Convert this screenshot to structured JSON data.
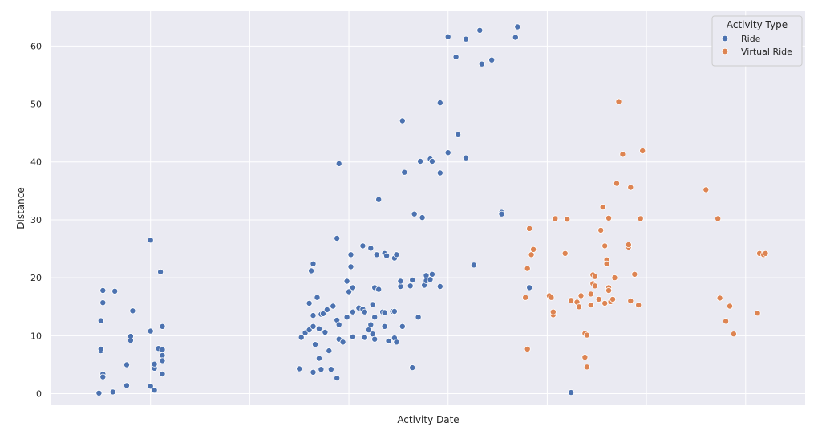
{
  "chart_data": {
    "type": "scatter",
    "title": "",
    "xlabel": "Activity Date",
    "ylabel": "Distance",
    "x_tick_labels_shown": false,
    "ylim": [
      -2,
      66
    ],
    "yticks": [
      0,
      10,
      20,
      30,
      40,
      50,
      60
    ],
    "grid": true,
    "legend": {
      "title": "Activity Type",
      "placement": "top-right"
    },
    "series": [
      {
        "name": "Ride",
        "color": "#4c72b0",
        "points": [
          [
            2.4,
            0.1
          ],
          [
            3.1,
            0.3
          ],
          [
            2.6,
            3.4
          ],
          [
            2.6,
            2.9
          ],
          [
            2.5,
            7.4
          ],
          [
            2.5,
            7.7
          ],
          [
            2.5,
            12.6
          ],
          [
            2.6,
            15.7
          ],
          [
            2.6,
            17.8
          ],
          [
            3.2,
            17.7
          ],
          [
            3.8,
            1.4
          ],
          [
            3.8,
            5.0
          ],
          [
            4.0,
            9.2
          ],
          [
            4.0,
            9.9
          ],
          [
            4.1,
            14.3
          ],
          [
            5.0,
            1.3
          ],
          [
            5.2,
            0.6
          ],
          [
            5.0,
            10.8
          ],
          [
            5.2,
            4.4
          ],
          [
            5.2,
            5.1
          ],
          [
            5.4,
            7.8
          ],
          [
            5.6,
            7.6
          ],
          [
            5.6,
            6.6
          ],
          [
            5.6,
            5.7
          ],
          [
            5.6,
            3.4
          ],
          [
            5.6,
            11.6
          ],
          [
            5.5,
            21.0
          ],
          [
            5.0,
            26.5
          ],
          [
            12.5,
            4.3
          ],
          [
            12.6,
            9.7
          ],
          [
            12.8,
            10.5
          ],
          [
            13.0,
            11.0
          ],
          [
            13.2,
            11.6
          ],
          [
            13.0,
            15.6
          ],
          [
            13.1,
            21.2
          ],
          [
            13.2,
            22.4
          ],
          [
            13.2,
            13.5
          ],
          [
            13.3,
            8.5
          ],
          [
            13.4,
            16.6
          ],
          [
            13.5,
            11.2
          ],
          [
            13.6,
            13.7
          ],
          [
            13.7,
            13.8
          ],
          [
            13.5,
            6.1
          ],
          [
            13.6,
            4.2
          ],
          [
            13.2,
            3.7
          ],
          [
            13.8,
            10.6
          ],
          [
            13.9,
            14.5
          ],
          [
            14.0,
            7.4
          ],
          [
            14.1,
            4.2
          ],
          [
            14.2,
            15.1
          ],
          [
            14.4,
            12.7
          ],
          [
            14.5,
            9.4
          ],
          [
            14.5,
            11.9
          ],
          [
            14.4,
            2.7
          ],
          [
            14.4,
            26.8
          ],
          [
            14.5,
            39.7
          ],
          [
            14.7,
            8.9
          ],
          [
            14.9,
            13.2
          ],
          [
            15.0,
            17.6
          ],
          [
            14.9,
            19.4
          ],
          [
            15.1,
            24.0
          ],
          [
            15.1,
            21.9
          ],
          [
            15.2,
            18.3
          ],
          [
            15.2,
            14.1
          ],
          [
            15.2,
            9.8
          ],
          [
            15.5,
            14.8
          ],
          [
            15.7,
            14.6
          ],
          [
            15.8,
            14.1
          ],
          [
            15.8,
            9.7
          ],
          [
            15.7,
            25.5
          ],
          [
            16.0,
            11.0
          ],
          [
            16.1,
            11.9
          ],
          [
            16.2,
            15.4
          ],
          [
            16.2,
            10.3
          ],
          [
            16.3,
            9.4
          ],
          [
            16.1,
            25.1
          ],
          [
            16.3,
            18.3
          ],
          [
            16.4,
            24.0
          ],
          [
            16.3,
            13.2
          ],
          [
            16.5,
            18.0
          ],
          [
            16.5,
            33.5
          ],
          [
            16.7,
            14.1
          ],
          [
            16.8,
            14.0
          ],
          [
            16.8,
            24.2
          ],
          [
            16.9,
            23.8
          ],
          [
            16.8,
            11.6
          ],
          [
            17.0,
            9.1
          ],
          [
            17.2,
            14.2
          ],
          [
            17.3,
            23.4
          ],
          [
            17.4,
            24.0
          ],
          [
            17.3,
            9.6
          ],
          [
            17.3,
            14.2
          ],
          [
            17.4,
            8.9
          ],
          [
            17.6,
            18.5
          ],
          [
            17.6,
            19.4
          ],
          [
            17.7,
            47.1
          ],
          [
            17.7,
            11.6
          ],
          [
            17.8,
            38.2
          ],
          [
            18.1,
            18.6
          ],
          [
            18.2,
            19.6
          ],
          [
            18.2,
            4.5
          ],
          [
            18.3,
            31.0
          ],
          [
            18.7,
            30.4
          ],
          [
            18.5,
            13.2
          ],
          [
            18.6,
            40.1
          ],
          [
            18.8,
            18.7
          ],
          [
            18.9,
            20.4
          ],
          [
            18.9,
            19.5
          ],
          [
            19.1,
            40.5
          ],
          [
            19.2,
            40.1
          ],
          [
            19.2,
            20.6
          ],
          [
            19.1,
            19.7
          ],
          [
            19.6,
            18.5
          ],
          [
            19.6,
            38.1
          ],
          [
            19.6,
            50.2
          ],
          [
            20.0,
            41.6
          ],
          [
            20.0,
            61.6
          ],
          [
            20.4,
            58.1
          ],
          [
            20.5,
            44.7
          ],
          [
            20.9,
            61.2
          ],
          [
            20.9,
            40.7
          ],
          [
            21.3,
            22.2
          ],
          [
            21.6,
            62.7
          ],
          [
            21.7,
            56.9
          ],
          [
            22.2,
            57.6
          ],
          [
            22.7,
            31.3
          ],
          [
            22.7,
            31.0
          ],
          [
            23.4,
            61.5
          ],
          [
            23.5,
            63.3
          ],
          [
            24.1,
            18.3
          ],
          [
            26.2,
            0.2
          ]
        ]
      },
      {
        "name": "Virtual Ride",
        "color": "#dd8452",
        "points": [
          [
            23.9,
            16.6
          ],
          [
            24.0,
            21.6
          ],
          [
            24.0,
            7.7
          ],
          [
            24.1,
            28.5
          ],
          [
            24.2,
            24.0
          ],
          [
            24.3,
            24.9
          ],
          [
            25.1,
            16.9
          ],
          [
            25.2,
            16.6
          ],
          [
            25.3,
            13.6
          ],
          [
            25.3,
            14.1
          ],
          [
            25.4,
            30.2
          ],
          [
            25.9,
            24.2
          ],
          [
            26.0,
            30.1
          ],
          [
            26.2,
            16.1
          ],
          [
            26.5,
            15.8
          ],
          [
            26.6,
            15.0
          ],
          [
            26.7,
            16.9
          ],
          [
            26.9,
            10.4
          ],
          [
            26.9,
            6.3
          ],
          [
            27.0,
            10.1
          ],
          [
            27.0,
            4.6
          ],
          [
            27.2,
            15.3
          ],
          [
            27.2,
            17.2
          ],
          [
            27.3,
            20.5
          ],
          [
            27.3,
            19.0
          ],
          [
            27.4,
            18.6
          ],
          [
            27.4,
            20.2
          ],
          [
            27.6,
            16.3
          ],
          [
            27.7,
            28.2
          ],
          [
            27.8,
            32.2
          ],
          [
            27.9,
            25.5
          ],
          [
            27.9,
            15.6
          ],
          [
            28.0,
            23.1
          ],
          [
            28.0,
            22.4
          ],
          [
            28.1,
            18.3
          ],
          [
            28.1,
            17.8
          ],
          [
            28.1,
            30.3
          ],
          [
            28.2,
            15.9
          ],
          [
            28.3,
            16.3
          ],
          [
            28.4,
            20.0
          ],
          [
            28.5,
            36.3
          ],
          [
            28.6,
            50.4
          ],
          [
            28.8,
            41.3
          ],
          [
            29.1,
            25.3
          ],
          [
            29.1,
            25.7
          ],
          [
            29.2,
            16.0
          ],
          [
            29.2,
            35.6
          ],
          [
            29.4,
            20.6
          ],
          [
            29.6,
            15.3
          ],
          [
            29.8,
            41.9
          ],
          [
            29.7,
            30.2
          ],
          [
            33.0,
            35.2
          ],
          [
            33.6,
            30.2
          ],
          [
            33.7,
            16.5
          ],
          [
            34.0,
            12.5
          ],
          [
            34.2,
            15.1
          ],
          [
            34.4,
            10.3
          ],
          [
            35.6,
            13.9
          ],
          [
            35.7,
            24.2
          ],
          [
            35.9,
            24.0
          ],
          [
            36.0,
            24.2
          ]
        ]
      }
    ],
    "xlim": [
      0,
      38
    ]
  }
}
